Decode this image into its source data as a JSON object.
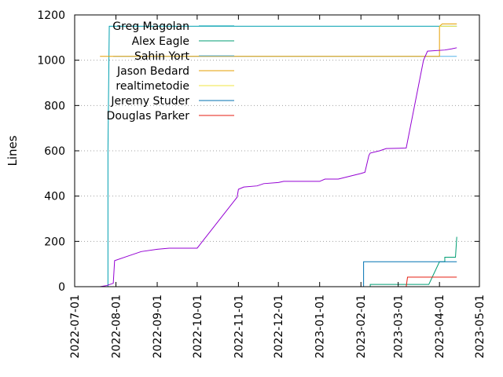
{
  "chart_data": {
    "type": "line",
    "title": "",
    "xlabel": "",
    "ylabel": "Lines",
    "xlim": [
      "2022-07-01",
      "2023-05-01"
    ],
    "ylim": [
      0,
      1200
    ],
    "yticks": [
      0,
      200,
      400,
      600,
      800,
      1000,
      1200
    ],
    "xticks": [
      "2022-07-01",
      "2022-08-01",
      "2022-09-01",
      "2022-10-01",
      "2022-11-01",
      "2022-12-01",
      "2023-01-01",
      "2023-02-01",
      "2023-03-01",
      "2023-04-01",
      "2023-05-01"
    ],
    "grid": "horizontal",
    "legend_position": "top-left",
    "series": [
      {
        "name": "Greg Magolan",
        "color": "#00a0b0",
        "points": [
          [
            "2022-07-22",
            0
          ],
          [
            "2022-07-26",
            0
          ],
          [
            "2022-07-26",
            600
          ],
          [
            "2022-07-27",
            1150
          ],
          [
            "2023-04-14",
            1150
          ]
        ]
      },
      {
        "name": "Alex Eagle",
        "color": "#009e73",
        "points": [
          [
            "2023-02-08",
            0
          ],
          [
            "2023-02-08",
            10
          ],
          [
            "2023-03-24",
            10
          ],
          [
            "2023-04-01",
            110
          ],
          [
            "2023-04-05",
            110
          ],
          [
            "2023-04-05",
            130
          ],
          [
            "2023-04-13",
            130
          ],
          [
            "2023-04-14",
            220
          ]
        ]
      },
      {
        "name": "Sahin Yort",
        "color": "#56b4e9",
        "points": [
          [
            "2022-07-30",
            1017
          ],
          [
            "2023-04-14",
            1017
          ]
        ]
      },
      {
        "name": "Jason Bedard",
        "color": "#e69f00",
        "points": [
          [
            "2022-07-20",
            1017
          ],
          [
            "2023-04-01",
            1017
          ],
          [
            "2023-04-01",
            1150
          ],
          [
            "2023-04-03",
            1160
          ],
          [
            "2023-04-14",
            1160
          ]
        ]
      },
      {
        "name": "realtimetodie",
        "color": "#f0e442",
        "points": [
          [
            "2023-04-01",
            1150
          ],
          [
            "2023-04-14",
            1150
          ]
        ]
      },
      {
        "name": "Jeremy Studer",
        "color": "#0072b2",
        "points": [
          [
            "2023-02-03",
            0
          ],
          [
            "2023-02-03",
            110
          ],
          [
            "2023-04-14",
            110
          ]
        ]
      },
      {
        "name": "Douglas Parker",
        "color": "#e51e10",
        "points": [
          [
            "2023-03-07",
            0
          ],
          [
            "2023-03-08",
            42
          ],
          [
            "2023-04-14",
            42
          ]
        ]
      },
      {
        "name": "",
        "color": "#9400d3",
        "points": [
          [
            "2022-07-20",
            0
          ],
          [
            "2022-07-25",
            5
          ],
          [
            "2022-07-30",
            15
          ],
          [
            "2022-07-31",
            115
          ],
          [
            "2022-08-10",
            135
          ],
          [
            "2022-08-20",
            155
          ],
          [
            "2022-09-01",
            165
          ],
          [
            "2022-09-10",
            170
          ],
          [
            "2022-10-01",
            170
          ],
          [
            "2022-10-31",
            395
          ],
          [
            "2022-11-01",
            430
          ],
          [
            "2022-11-05",
            440
          ],
          [
            "2022-11-15",
            445
          ],
          [
            "2022-11-20",
            455
          ],
          [
            "2022-12-01",
            460
          ],
          [
            "2022-12-05",
            465
          ],
          [
            "2023-01-01",
            465
          ],
          [
            "2023-01-05",
            475
          ],
          [
            "2023-01-15",
            475
          ],
          [
            "2023-02-01",
            500
          ],
          [
            "2023-02-04",
            505
          ],
          [
            "2023-02-07",
            580
          ],
          [
            "2023-02-08",
            590
          ],
          [
            "2023-02-15",
            600
          ],
          [
            "2023-02-20",
            610
          ],
          [
            "2023-03-07",
            612
          ],
          [
            "2023-03-20",
            1000
          ],
          [
            "2023-03-23",
            1040
          ],
          [
            "2023-04-05",
            1045
          ],
          [
            "2023-04-10",
            1050
          ],
          [
            "2023-04-14",
            1055
          ]
        ]
      }
    ]
  }
}
